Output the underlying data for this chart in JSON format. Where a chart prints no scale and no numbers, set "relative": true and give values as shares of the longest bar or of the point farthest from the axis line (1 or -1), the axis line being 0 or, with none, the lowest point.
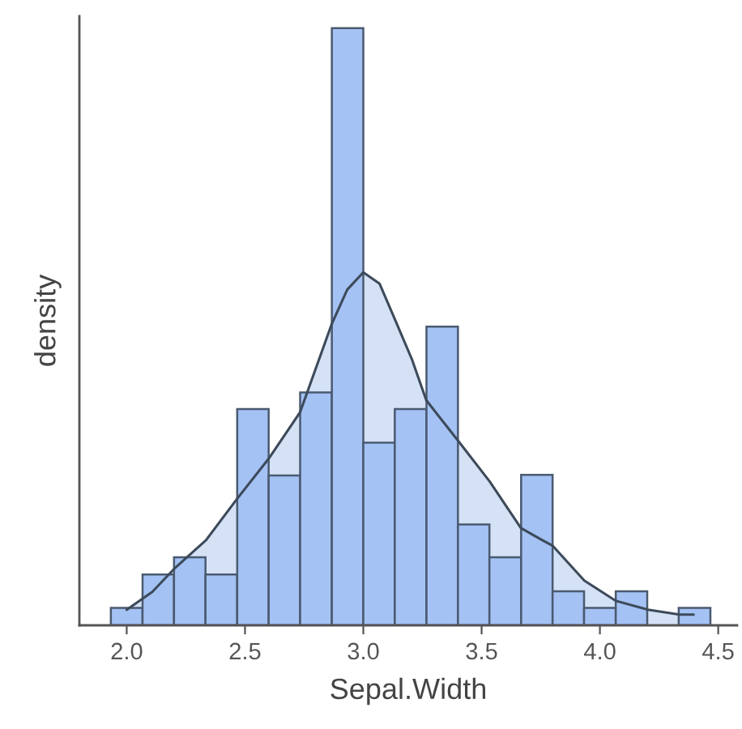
{
  "chart_data": {
    "type": "histogram",
    "relative": true,
    "xlabel": "Sepal.Width",
    "ylabel": "density",
    "tick_labels": "x",
    "grid": false,
    "color": "#a4c2f4",
    "bins": [
      1.933,
      2.067,
      2.2,
      2.333,
      2.467,
      2.6,
      2.733,
      2.867,
      3.0,
      3.133,
      3.267,
      3.4,
      3.533,
      3.667,
      3.8,
      3.933,
      4.067,
      4.2,
      4.333,
      4.467
    ],
    "values": [
      0.029,
      0.085,
      0.114,
      0.085,
      0.362,
      0.251,
      0.39,
      1,
      0.306,
      0.362,
      0.5,
      0.169,
      0.114,
      0.252,
      0.057,
      0.029,
      0.057,
      0,
      0.029
    ],
    "xlim": [
      1.8,
      4.58
    ],
    "xticks": [
      {
        "value": 2,
        "label": "2.0"
      },
      {
        "value": 2.5,
        "label": "2.5"
      },
      {
        "value": 3,
        "label": "3.0"
      },
      {
        "value": 3.5,
        "label": "3.5"
      },
      {
        "value": 4,
        "label": "4.0"
      },
      {
        "value": 4.5,
        "label": "4.5"
      }
    ],
    "series": [
      {
        "type": "area",
        "color": "#d5e1f5",
        "x": [
          2.0,
          2.108,
          2.199,
          2.336,
          2.465,
          2.6,
          2.733,
          2.865,
          2.932,
          3.0,
          3.069,
          3.133,
          3.206,
          3.266,
          3.343,
          3.401,
          3.534,
          3.666,
          3.755,
          3.801,
          3.934,
          4.067,
          4.204,
          4.337,
          4.396
        ],
        "values": [
          0.026,
          0.056,
          0.094,
          0.143,
          0.211,
          0.279,
          0.357,
          0.503,
          0.562,
          0.591,
          0.572,
          0.513,
          0.445,
          0.377,
          0.338,
          0.309,
          0.241,
          0.163,
          0.143,
          0.133,
          0.075,
          0.041,
          0.026,
          0.018,
          0.018
        ]
      }
    ]
  }
}
